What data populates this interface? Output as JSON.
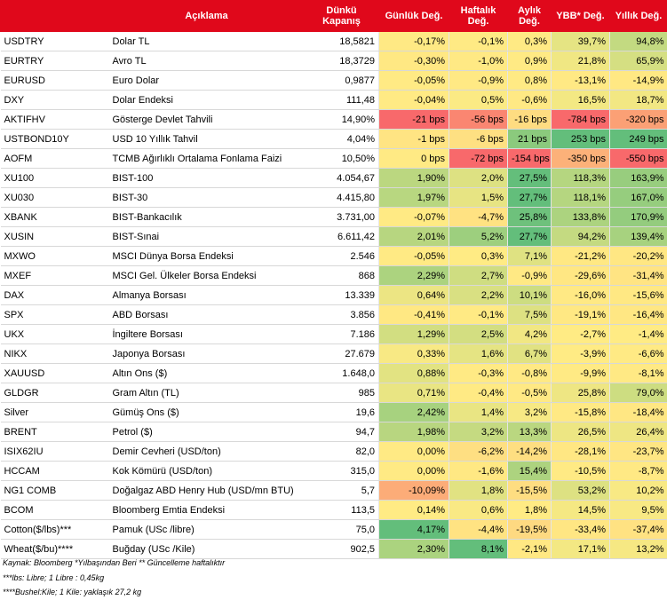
{
  "header": {
    "code": "",
    "description": "Açıklama",
    "close": "Dünkü Kapanış",
    "daily": "Günlük Değ.",
    "weekly": "Haftalık Değ.",
    "monthly": "Aylık Değ.",
    "ytd": "YBB* Değ.",
    "yearly": "Yıllık Değ."
  },
  "rows": [
    {
      "code": "USDTRY",
      "description": "Dolar TL",
      "close": "18,5821",
      "daily": "-0,17%",
      "weekly": "-0,1%",
      "monthly": "0,3%",
      "ytd": "39,7%",
      "yearly": "94,8%"
    },
    {
      "code": "EURTRY",
      "description": "Avro TL",
      "close": "18,3729",
      "daily": "-0,30%",
      "weekly": "-1,0%",
      "monthly": "0,9%",
      "ytd": "21,8%",
      "yearly": "65,9%"
    },
    {
      "code": "EURUSD",
      "description": "Euro Dolar",
      "close": "0,9877",
      "daily": "-0,05%",
      "weekly": "-0,9%",
      "monthly": "0,8%",
      "ytd": "-13,1%",
      "yearly": "-14,9%"
    },
    {
      "code": "DXY",
      "description": "Dolar Endeksi",
      "close": "111,48",
      "daily": "-0,04%",
      "weekly": "0,5%",
      "monthly": "-0,6%",
      "ytd": "16,5%",
      "yearly": "18,7%"
    },
    {
      "code": "AKTIFHV",
      "description": "Gösterge Devlet Tahvili",
      "close": "14,90%",
      "daily": "-21 bps",
      "weekly": "-56 bps",
      "monthly": "-16 bps",
      "ytd": "-784 bps",
      "yearly": "-320 bps"
    },
    {
      "code": "USTBOND10Y",
      "description": "USD 10 Yıllık Tahvil",
      "close": "4,04%",
      "daily": "-1 bps",
      "weekly": "-6 bps",
      "monthly": "21 bps",
      "ytd": "253 bps",
      "yearly": "249 bps"
    },
    {
      "code": "AOFM",
      "description": "TCMB Ağırlıklı Ortalama Fonlama Faizi",
      "close": "10,50%",
      "daily": "0 bps",
      "weekly": "-72 bps",
      "monthly": "-154 bps",
      "ytd": "-350 bps",
      "yearly": "-550 bps"
    },
    {
      "code": "XU100",
      "description": "BIST-100",
      "close": "4.054,67",
      "daily": "1,90%",
      "weekly": "2,0%",
      "monthly": "27,5%",
      "ytd": "118,3%",
      "yearly": "163,9%"
    },
    {
      "code": "XU030",
      "description": "BIST-30",
      "close": "4.415,80",
      "daily": "1,97%",
      "weekly": "1,5%",
      "monthly": "27,7%",
      "ytd": "118,1%",
      "yearly": "167,0%"
    },
    {
      "code": "XBANK",
      "description": "BIST-Bankacılık",
      "close": "3.731,00",
      "daily": "-0,07%",
      "weekly": "-4,7%",
      "monthly": "25,8%",
      "ytd": "133,8%",
      "yearly": "170,9%"
    },
    {
      "code": "XUSIN",
      "description": "BIST-Sınai",
      "close": "6.611,42",
      "daily": "2,01%",
      "weekly": "5,2%",
      "monthly": "27,7%",
      "ytd": "94,2%",
      "yearly": "139,4%"
    },
    {
      "code": "MXWO",
      "description": "MSCI Dünya Borsa Endeksi",
      "close": "2.546",
      "daily": "-0,05%",
      "weekly": "0,3%",
      "monthly": "7,1%",
      "ytd": "-21,2%",
      "yearly": "-20,2%"
    },
    {
      "code": "MXEF",
      "description": "MSCI Gel. Ülkeler Borsa Endeksi",
      "close": "868",
      "daily": "2,29%",
      "weekly": "2,7%",
      "monthly": "-0,9%",
      "ytd": "-29,6%",
      "yearly": "-31,4%"
    },
    {
      "code": "DAX",
      "description": "Almanya Borsası",
      "close": "13.339",
      "daily": "0,64%",
      "weekly": "2,2%",
      "monthly": "10,1%",
      "ytd": "-16,0%",
      "yearly": "-15,6%"
    },
    {
      "code": "SPX",
      "description": "ABD Borsası",
      "close": "3.856",
      "daily": "-0,41%",
      "weekly": "-0,1%",
      "monthly": "7,5%",
      "ytd": "-19,1%",
      "yearly": "-16,4%"
    },
    {
      "code": "UKX",
      "description": "İngiltere Borsası",
      "close": "7.186",
      "daily": "1,29%",
      "weekly": "2,5%",
      "monthly": "4,2%",
      "ytd": "-2,7%",
      "yearly": "-1,4%"
    },
    {
      "code": "NIKX",
      "description": "Japonya Borsası",
      "close": "27.679",
      "daily": "0,33%",
      "weekly": "1,6%",
      "monthly": "6,7%",
      "ytd": "-3,9%",
      "yearly": "-6,6%"
    },
    {
      "code": "XAUUSD",
      "description": "Altın Ons ($)",
      "close": "1.648,0",
      "daily": "0,88%",
      "weekly": "-0,3%",
      "monthly": "-0,8%",
      "ytd": "-9,9%",
      "yearly": "-8,1%"
    },
    {
      "code": "GLDGR",
      "description": "Gram Altın (TL)",
      "close": "985",
      "daily": "0,71%",
      "weekly": "-0,4%",
      "monthly": "-0,5%",
      "ytd": "25,8%",
      "yearly": "79,0%"
    },
    {
      "code": "Silver",
      "description": "Gümüş Ons ($)",
      "close": "19,6",
      "daily": "2,42%",
      "weekly": "1,4%",
      "monthly": "3,2%",
      "ytd": "-15,8%",
      "yearly": "-18,4%"
    },
    {
      "code": "BRENT",
      "description": "Petrol ($)",
      "close": "94,7",
      "daily": "1,98%",
      "weekly": "3,2%",
      "monthly": "13,3%",
      "ytd": "26,5%",
      "yearly": "26,4%"
    },
    {
      "code": "ISIX62IU",
      "description": "Demir Cevheri (USD/ton)",
      "close": "82,0",
      "daily": "0,00%",
      "weekly": "-6,2%",
      "monthly": "-14,2%",
      "ytd": "-28,1%",
      "yearly": "-23,7%"
    },
    {
      "code": "HCCAM",
      "description": "Kok Kömürü (USD/ton)",
      "close": "315,0",
      "daily": "0,00%",
      "weekly": "-1,6%",
      "monthly": "15,4%",
      "ytd": "-10,5%",
      "yearly": "-8,7%"
    },
    {
      "code": "NG1 COMB",
      "description": "Doğalgaz ABD Henry Hub (USD/mn BTU)",
      "close": "5,7",
      "daily": "-10,09%",
      "weekly": "1,8%",
      "monthly": "-15,5%",
      "ytd": "53,2%",
      "yearly": "10,2%"
    },
    {
      "code": "BCOM",
      "description": "Bloomberg Emtia Endeksi",
      "close": "113,5",
      "daily": "0,14%",
      "weekly": "0,6%",
      "monthly": "1,8%",
      "ytd": "14,5%",
      "yearly": "9,5%"
    },
    {
      "code": "Cotton($/lbs)***",
      "description": "Pamuk (USc /libre)",
      "close": "75,0",
      "daily": "4,17%",
      "weekly": "-4,4%",
      "monthly": "-19,5%",
      "ytd": "-33,4%",
      "yearly": "-37,4%"
    },
    {
      "code": "Wheat($/bu)****",
      "description": "Buğday (USc /Kile)",
      "close": "902,5",
      "daily": "2,30%",
      "weekly": "8,1%",
      "monthly": "-2,1%",
      "ytd": "17,1%",
      "yearly": "13,2%"
    }
  ],
  "notes": [
    "Kaynak: Bloomberg *Yılbaşından Beri  ** Güncelleme haftalıktır",
    "***lbs: Libre; 1 Libre : 0,45kg",
    "****Bushel:Kile; 1 Kile: yaklaşık 27,2 kg"
  ],
  "colors": {
    "header_bg": "#e0081b",
    "header_text": "#ffffff",
    "scale_low": "#f8696b",
    "scale_mid": "#ffeb84",
    "scale_high": "#63be7b"
  }
}
